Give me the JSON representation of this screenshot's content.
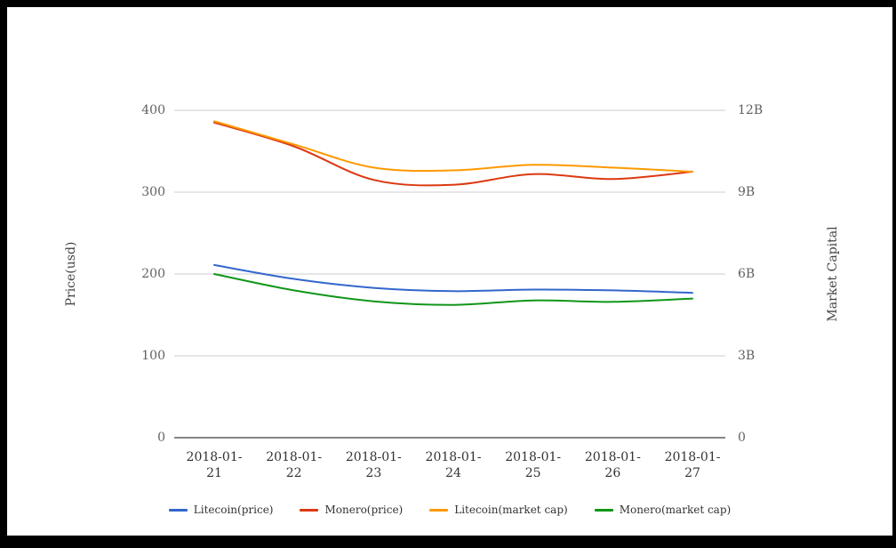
{
  "chart_data": {
    "type": "line",
    "smooth": true,
    "grid": true,
    "x": [
      "2018-01-21",
      "2018-01-22",
      "2018-01-23",
      "2018-01-24",
      "2018-01-25",
      "2018-01-26",
      "2018-01-27"
    ],
    "series": [
      {
        "name": "Litecoin(price)",
        "axis": "left",
        "color": "#3366cc",
        "values": [
          211,
          194,
          183,
          179,
          181,
          180,
          177
        ]
      },
      {
        "name": "Monero(price)",
        "axis": "left",
        "color": "#dc3912",
        "values": [
          385,
          356,
          315,
          309,
          322,
          316,
          325
        ]
      },
      {
        "name": "Litecoin(market cap)",
        "axis": "right",
        "color": "#ff9900",
        "values": [
          11.6,
          10.75,
          9.9,
          9.8,
          10.0,
          9.9,
          9.75
        ]
      },
      {
        "name": "Monero(market cap)",
        "axis": "right",
        "color": "#109618",
        "values": [
          6.0,
          5.4,
          5.0,
          4.87,
          5.03,
          4.98,
          5.1
        ]
      }
    ],
    "left_axis": {
      "title": "Price(usd)",
      "ticks": [
        "400",
        "300",
        "200",
        "100",
        "0"
      ],
      "range": [
        0,
        400
      ]
    },
    "right_axis": {
      "title": "Market Capital",
      "ticks": [
        "12B",
        "9B",
        "6B",
        "3B",
        "0"
      ],
      "range_billions": [
        0,
        12
      ]
    },
    "legend_position": "bottom"
  },
  "colors": {
    "grid_line": "#cccccc",
    "axis_line": "#5f5f5f",
    "background": "#ffffff",
    "frame": "#000000"
  }
}
